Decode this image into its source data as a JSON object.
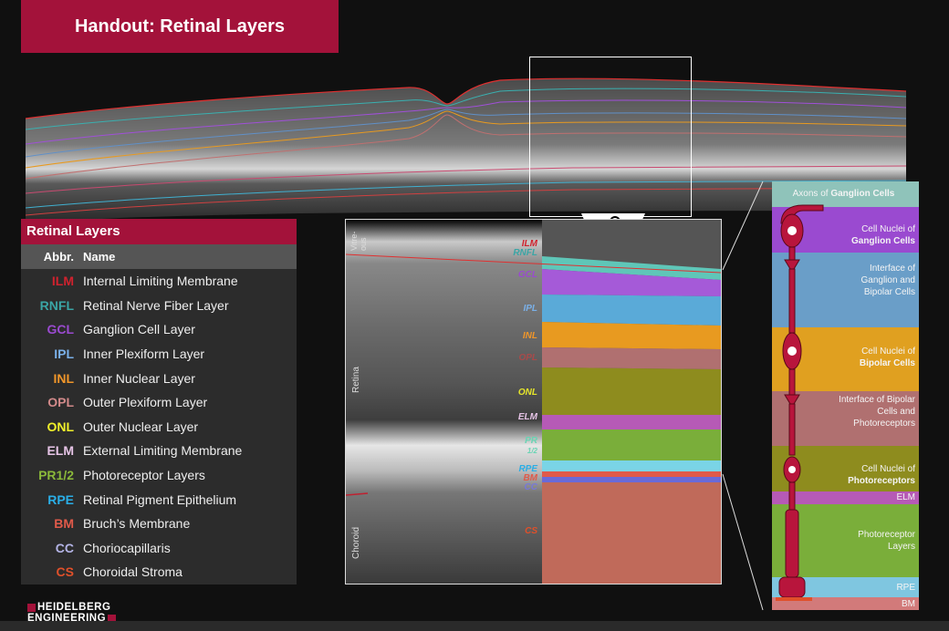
{
  "title": "Handout: Retinal Layers",
  "legend": {
    "heading": "Retinal Layers",
    "col_abbr": "Abbr.",
    "col_name": "Name",
    "rows": [
      {
        "abbr": "ILM",
        "name": "Internal Limiting Membrane",
        "color": "#d0222e"
      },
      {
        "abbr": "RNFL",
        "name": "Retinal Nerve Fiber Layer",
        "color": "#3aa5a5"
      },
      {
        "abbr": "GCL",
        "name": "Ganglion Cell Layer",
        "color": "#9a4ad0"
      },
      {
        "abbr": "IPL",
        "name": "Inner Plexiform Layer",
        "color": "#7ab0e8"
      },
      {
        "abbr": "INL",
        "name": "Inner Nuclear Layer",
        "color": "#f0962a"
      },
      {
        "abbr": "OPL",
        "name": "Outer Plexiform Layer",
        "color": "#d28a8a"
      },
      {
        "abbr": "ONL",
        "name": "Outer Nuclear Layer",
        "color": "#f0f02a"
      },
      {
        "abbr": "ELM",
        "name": "External Limiting Membrane",
        "color": "#e6c4e6"
      },
      {
        "abbr": "PR1/2",
        "name": "Photoreceptor Layers",
        "color": "#8ab83a"
      },
      {
        "abbr": "RPE",
        "name": "Retinal Pigment Epithelium",
        "color": "#2aaee6"
      },
      {
        "abbr": "BM",
        "name": "Bruch’s Membrane",
        "color": "#e05a4a"
      },
      {
        "abbr": "CC",
        "name": "Choriocapillaris",
        "color": "#b4b4e6"
      },
      {
        "abbr": "CS",
        "name": "Choroidal Stroma",
        "color": "#e0502a"
      }
    ]
  },
  "detail": {
    "side_labels": {
      "vitreous_1": "Vitre-",
      "vitreous_2": "ous",
      "retina": "Retina",
      "choroid": "Choroid"
    },
    "layer_tags": {
      "ilm": "ILM",
      "rnfl": "RNFL",
      "gcl": "GCL",
      "ipl": "IPL",
      "inl": "INL",
      "opl": "OPL",
      "onl": "ONL",
      "elm": "ELM",
      "pr_1": "PR",
      "pr_2": "1/2",
      "rpe": "RPE",
      "bm": "BM",
      "cc": "CC",
      "cs": "CS"
    }
  },
  "cells": {
    "axons_prefix": "Axons of ",
    "axons_bold": "Ganglion Cells",
    "gcl_1": "Cell Nuclei of",
    "gcl_2": "Ganglion Cells",
    "ipl_1": "Interface of",
    "ipl_2": "Ganglion and",
    "ipl_3": "Bipolar Cells",
    "inl_1": "Cell Nuclei of",
    "inl_2": "Bipolar Cells",
    "opl_1": "Interface of Bipolar",
    "opl_2": "Cells and",
    "opl_3": "Photoreceptors",
    "onl_1": "Cell Nuclei of",
    "onl_2": "Photoreceptors",
    "elm": "ELM",
    "pr_1": "Photoreceptor",
    "pr_2": "Layers",
    "rpe": "RPE",
    "bm": "BM"
  },
  "logo": {
    "line1": "HEIDELBERG",
    "line2": "ENGINEERING"
  },
  "colors": {
    "brand": "#a3123a"
  }
}
